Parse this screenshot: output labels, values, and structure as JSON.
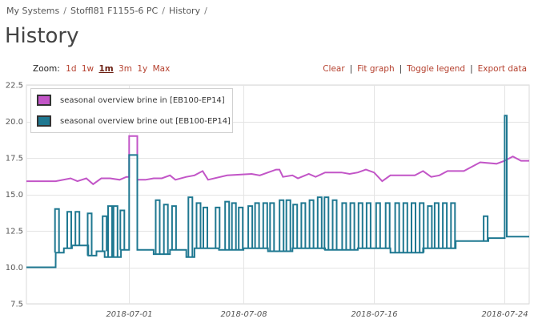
{
  "breadcrumb": {
    "items": [
      "My Systems",
      "Stoffl81 F1155-6 PC",
      "History"
    ],
    "separator": "/"
  },
  "page": {
    "title": "History"
  },
  "zoom": {
    "label": "Zoom:",
    "options": [
      "1d",
      "1w",
      "1m",
      "3m",
      "1y",
      "Max"
    ],
    "selected": "1m"
  },
  "actions": [
    "Clear",
    "Fit graph",
    "Toggle legend",
    "Export data"
  ],
  "colors": {
    "brine_in": "#c255c7",
    "brine_out": "#1f7891",
    "accent_link": "#b5402e"
  },
  "chart_data": {
    "type": "line",
    "ylim": [
      7.5,
      22.5
    ],
    "yticks": [
      "7.5",
      "10.0",
      "12.5",
      "15.0",
      "17.5",
      "20.0",
      "22.5"
    ],
    "x_range": [
      "2018-06-24T17:00",
      "2018-07-25T12:00"
    ],
    "xticks": [
      "2018-07-01",
      "2018-07-08",
      "2018-07-16",
      "2018-07-24"
    ],
    "grid": true,
    "legend_position": "top-left",
    "series": [
      {
        "name": "seasonal overview brine in [EB100-EP14]",
        "color": "#c255c7",
        "step": false,
        "points": [
          [
            "2018-06-24T17:00",
            15.9
          ],
          [
            "2018-06-26T12:00",
            15.9
          ],
          [
            "2018-06-27T10:00",
            16.1
          ],
          [
            "2018-06-27T20:00",
            15.9
          ],
          [
            "2018-06-28T09:00",
            16.1
          ],
          [
            "2018-06-28T19:00",
            15.7
          ],
          [
            "2018-06-29T07:00",
            16.1
          ],
          [
            "2018-06-29T20:00",
            16.1
          ],
          [
            "2018-06-30T10:00",
            16.0
          ],
          [
            "2018-06-30T20:00",
            16.2
          ],
          [
            "2018-07-01T00:00",
            16.2
          ],
          [
            "2018-07-01T00:01",
            19.0
          ],
          [
            "2018-07-01T12:00",
            19.0
          ],
          [
            "2018-07-01T12:01",
            16.0
          ],
          [
            "2018-07-02T00:00",
            16.0
          ],
          [
            "2018-07-02T12:00",
            16.1
          ],
          [
            "2018-07-03T00:00",
            16.1
          ],
          [
            "2018-07-03T12:00",
            16.3
          ],
          [
            "2018-07-03T20:00",
            16.0
          ],
          [
            "2018-07-04T12:00",
            16.2
          ],
          [
            "2018-07-05T00:00",
            16.3
          ],
          [
            "2018-07-05T12:00",
            16.6
          ],
          [
            "2018-07-05T20:00",
            16.0
          ],
          [
            "2018-07-07T00:00",
            16.3
          ],
          [
            "2018-07-08T12:00",
            16.4
          ],
          [
            "2018-07-09T00:00",
            16.3
          ],
          [
            "2018-07-09T12:00",
            16.5
          ],
          [
            "2018-07-10T00:00",
            16.7
          ],
          [
            "2018-07-10T05:00",
            16.7
          ],
          [
            "2018-07-10T10:00",
            16.2
          ],
          [
            "2018-07-11T00:00",
            16.3
          ],
          [
            "2018-07-11T08:00",
            16.1
          ],
          [
            "2018-07-12T00:00",
            16.4
          ],
          [
            "2018-07-12T10:00",
            16.2
          ],
          [
            "2018-07-13T00:00",
            16.5
          ],
          [
            "2018-07-14T00:00",
            16.5
          ],
          [
            "2018-07-14T12:00",
            16.4
          ],
          [
            "2018-07-15T00:00",
            16.5
          ],
          [
            "2018-07-15T12:00",
            16.7
          ],
          [
            "2018-07-16T00:00",
            16.5
          ],
          [
            "2018-07-16T12:00",
            15.9
          ],
          [
            "2018-07-17T00:00",
            16.3
          ],
          [
            "2018-07-18T12:00",
            16.3
          ],
          [
            "2018-07-19T00:00",
            16.6
          ],
          [
            "2018-07-19T12:00",
            16.2
          ],
          [
            "2018-07-20T00:00",
            16.3
          ],
          [
            "2018-07-20T12:00",
            16.6
          ],
          [
            "2018-07-21T12:00",
            16.6
          ],
          [
            "2018-07-22T12:00",
            17.2
          ],
          [
            "2018-07-23T12:00",
            17.1
          ],
          [
            "2018-07-24T00:00",
            17.3
          ],
          [
            "2018-07-24T12:00",
            17.6
          ],
          [
            "2018-07-25T00:00",
            17.3
          ],
          [
            "2018-07-25T12:00",
            17.3
          ]
        ]
      },
      {
        "name": "seasonal overview brine out [EB100-EP14]",
        "color": "#1f7891",
        "step": true,
        "points": [
          [
            "2018-06-24T17:00",
            10.0
          ],
          [
            "2018-06-26T12:00",
            10.0
          ],
          [
            "2018-06-26T12:01",
            11.0
          ],
          [
            "2018-06-27T00:00",
            11.0
          ],
          [
            "2018-06-27T00:01",
            11.3
          ],
          [
            "2018-06-27T12:00",
            11.3
          ],
          [
            "2018-06-27T12:01",
            11.5
          ],
          [
            "2018-06-28T12:00",
            11.5
          ],
          [
            "2018-06-28T12:01",
            10.8
          ],
          [
            "2018-06-29T00:00",
            10.8
          ],
          [
            "2018-06-29T00:01",
            11.1
          ],
          [
            "2018-06-29T12:00",
            11.1
          ],
          [
            "2018-06-29T12:01",
            10.7
          ],
          [
            "2018-06-30T12:00",
            10.7
          ],
          [
            "2018-06-30T12:01",
            11.2
          ],
          [
            "2018-07-01T00:00",
            11.2
          ],
          [
            "2018-07-01T00:01",
            17.7
          ],
          [
            "2018-07-01T12:00",
            17.7
          ],
          [
            "2018-07-01T12:01",
            11.2
          ],
          [
            "2018-07-02T12:00",
            11.2
          ],
          [
            "2018-07-02T12:01",
            10.9
          ],
          [
            "2018-07-03T12:00",
            10.9
          ],
          [
            "2018-07-03T12:01",
            11.2
          ],
          [
            "2018-07-04T12:00",
            11.2
          ],
          [
            "2018-07-04T12:01",
            10.7
          ],
          [
            "2018-07-05T00:00",
            10.7
          ],
          [
            "2018-07-05T00:01",
            11.3
          ],
          [
            "2018-07-06T12:00",
            11.3
          ],
          [
            "2018-07-06T12:01",
            11.2
          ],
          [
            "2018-07-08T00:00",
            11.2
          ],
          [
            "2018-07-08T00:01",
            11.3
          ],
          [
            "2018-07-09T12:00",
            11.3
          ],
          [
            "2018-07-09T12:01",
            11.1
          ],
          [
            "2018-07-11T00:00",
            11.1
          ],
          [
            "2018-07-11T00:01",
            11.3
          ],
          [
            "2018-07-13T00:00",
            11.3
          ],
          [
            "2018-07-13T00:01",
            11.2
          ],
          [
            "2018-07-15T00:00",
            11.2
          ],
          [
            "2018-07-15T00:01",
            11.3
          ],
          [
            "2018-07-17T00:00",
            11.3
          ],
          [
            "2018-07-17T00:01",
            11.0
          ],
          [
            "2018-07-19T00:00",
            11.0
          ],
          [
            "2018-07-19T00:01",
            11.3
          ],
          [
            "2018-07-21T00:00",
            11.3
          ],
          [
            "2018-07-21T00:01",
            11.8
          ],
          [
            "2018-07-23T00:00",
            11.8
          ],
          [
            "2018-07-23T00:01",
            12.0
          ],
          [
            "2018-07-24T00:00",
            12.0
          ],
          [
            "2018-07-24T00:01",
            20.4
          ],
          [
            "2018-07-24T03:00",
            20.4
          ],
          [
            "2018-07-24T03:01",
            12.1
          ],
          [
            "2018-07-25T12:00",
            12.1
          ]
        ],
        "spikes": [
          [
            "2018-06-26T14:00",
            14.0
          ],
          [
            "2018-06-27T08:00",
            13.8
          ],
          [
            "2018-06-27T20:00",
            13.8
          ],
          [
            "2018-06-28T14:00",
            13.7
          ],
          [
            "2018-06-29T12:00",
            13.5
          ],
          [
            "2018-06-29T20:00",
            14.2
          ],
          [
            "2018-06-30T04:00",
            14.2
          ],
          [
            "2018-06-30T14:00",
            13.9
          ],
          [
            "2018-07-02T18:00",
            14.6
          ],
          [
            "2018-07-03T06:00",
            14.3
          ],
          [
            "2018-07-03T18:00",
            14.2
          ],
          [
            "2018-07-04T18:00",
            14.8
          ],
          [
            "2018-07-05T06:00",
            14.4
          ],
          [
            "2018-07-05T16:00",
            14.1
          ],
          [
            "2018-07-06T10:00",
            14.1
          ],
          [
            "2018-07-07T00:00",
            14.5
          ],
          [
            "2018-07-07T10:00",
            14.4
          ],
          [
            "2018-07-07T20:00",
            14.1
          ],
          [
            "2018-07-08T10:00",
            14.2
          ],
          [
            "2018-07-08T20:00",
            14.4
          ],
          [
            "2018-07-09T08:00",
            14.4
          ],
          [
            "2018-07-09T18:00",
            14.4
          ],
          [
            "2018-07-10T08:00",
            14.6
          ],
          [
            "2018-07-10T18:00",
            14.6
          ],
          [
            "2018-07-11T04:00",
            14.3
          ],
          [
            "2018-07-11T16:00",
            14.4
          ],
          [
            "2018-07-12T04:00",
            14.6
          ],
          [
            "2018-07-12T16:00",
            14.8
          ],
          [
            "2018-07-13T02:00",
            14.8
          ],
          [
            "2018-07-13T14:00",
            14.6
          ],
          [
            "2018-07-14T04:00",
            14.4
          ],
          [
            "2018-07-14T16:00",
            14.4
          ],
          [
            "2018-07-15T04:00",
            14.4
          ],
          [
            "2018-07-15T16:00",
            14.4
          ],
          [
            "2018-07-16T06:00",
            14.4
          ],
          [
            "2018-07-16T20:00",
            14.4
          ],
          [
            "2018-07-17T10:00",
            14.4
          ],
          [
            "2018-07-17T22:00",
            14.4
          ],
          [
            "2018-07-18T10:00",
            14.4
          ],
          [
            "2018-07-18T22:00",
            14.4
          ],
          [
            "2018-07-19T10:00",
            14.2
          ],
          [
            "2018-07-19T20:00",
            14.4
          ],
          [
            "2018-07-20T08:00",
            14.4
          ],
          [
            "2018-07-20T20:00",
            14.4
          ],
          [
            "2018-07-22T20:00",
            13.5
          ]
        ]
      }
    ]
  }
}
